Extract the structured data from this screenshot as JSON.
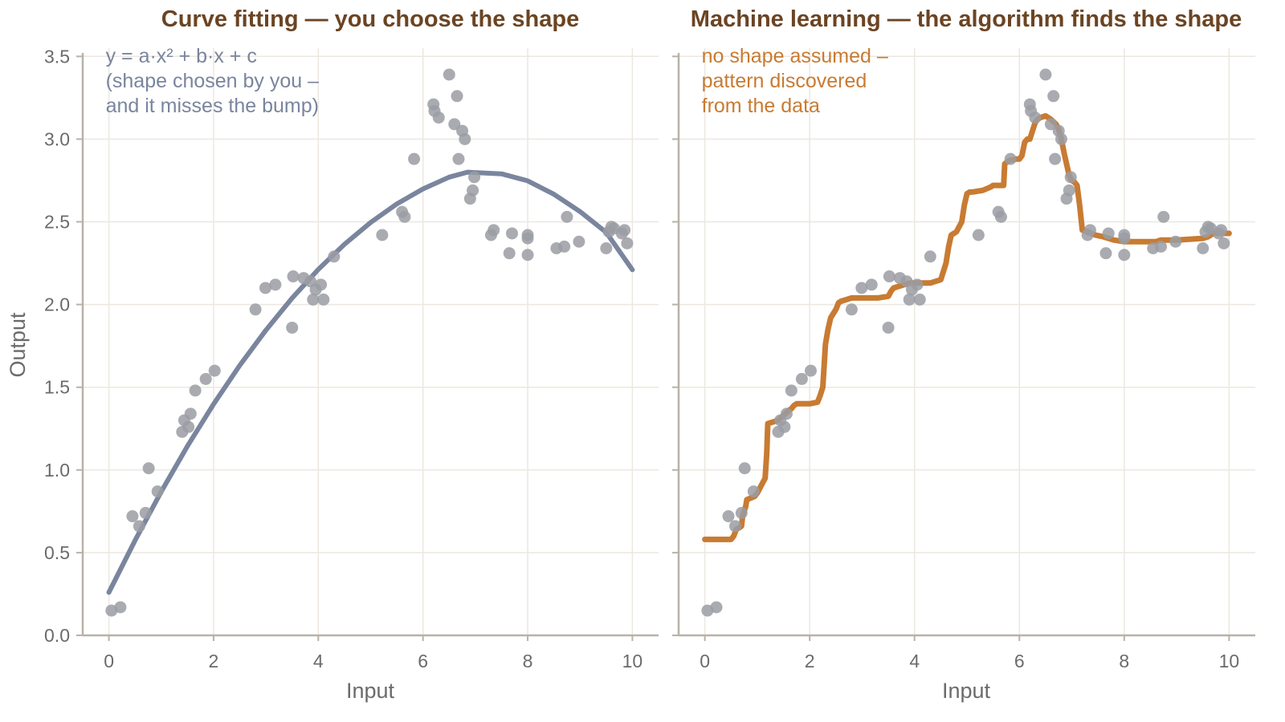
{
  "chart_data": [
    {
      "type": "scatter",
      "title": "Curve fitting — you choose the shape",
      "xlabel": "Input",
      "ylabel": "Output",
      "xlim": [
        -0.5,
        10.5
      ],
      "ylim": [
        0,
        3.55
      ],
      "xticks": [
        0,
        2,
        4,
        6,
        8,
        10
      ],
      "yticks": [
        0,
        0.5,
        1,
        1.5,
        2,
        2.5,
        3,
        3.5
      ],
      "xtick_labels": [
        "0",
        "2",
        "4",
        "6",
        "8",
        "10"
      ],
      "ytick_labels": [
        "0.0",
        "0.5",
        "1.0",
        "1.5",
        "2.0",
        "2.5",
        "3.0",
        "3.5"
      ],
      "grid": true,
      "annotation": [
        "y = a·x² + b·x + c",
        "(shape chosen by you –",
        "and it misses the bump)"
      ],
      "colors": {
        "points": "#9a9ca3",
        "fit": "#7a859e",
        "annotation": "#7a859e",
        "title": "#6b4423"
      },
      "series": [
        {
          "type": "scatter",
          "x": [
            0.05,
            0.22,
            0.45,
            0.58,
            0.7,
            0.76,
            0.93,
            1.4,
            1.44,
            1.52,
            1.56,
            1.65,
            1.85,
            2.02,
            2.8,
            2.99,
            3.18,
            3.5,
            3.52,
            3.72,
            3.85,
            3.9,
            3.95,
            4.05,
            4.1,
            4.3,
            5.22,
            5.6,
            5.65,
            5.83,
            6.2,
            6.22,
            6.3,
            6.5,
            6.6,
            6.65,
            6.68,
            6.75,
            6.8,
            6.9,
            6.95,
            6.98,
            7.3,
            7.35,
            7.65,
            7.7,
            8.0,
            8.0,
            8.0,
            8.55,
            8.7,
            8.75,
            8.98,
            9.5,
            9.55,
            9.6,
            9.65,
            9.8,
            9.85,
            9.9
          ],
          "y": [
            0.15,
            0.17,
            0.72,
            0.66,
            0.74,
            1.01,
            0.87,
            1.23,
            1.3,
            1.26,
            1.34,
            1.48,
            1.55,
            1.6,
            1.97,
            2.1,
            2.12,
            1.86,
            2.17,
            2.16,
            2.14,
            2.03,
            2.09,
            2.12,
            2.03,
            2.29,
            2.42,
            2.56,
            2.53,
            2.88,
            3.21,
            3.17,
            3.13,
            3.39,
            3.09,
            3.26,
            2.88,
            3.05,
            3.0,
            2.64,
            2.69,
            2.77,
            2.42,
            2.45,
            2.31,
            2.43,
            2.42,
            2.4,
            2.3,
            2.34,
            2.35,
            2.53,
            2.38,
            2.34,
            2.44,
            2.47,
            2.46,
            2.43,
            2.45,
            2.37
          ]
        },
        {
          "type": "line",
          "x": [
            0,
            0.5,
            1,
            1.5,
            2,
            2.5,
            3,
            3.5,
            4,
            4.5,
            5,
            5.5,
            6,
            6.5,
            6.85,
            7.5,
            8,
            8.5,
            9,
            9.5,
            10
          ],
          "y": [
            0.26,
            0.574,
            0.869,
            1.144,
            1.398,
            1.632,
            1.845,
            2.039,
            2.212,
            2.364,
            2.496,
            2.608,
            2.699,
            2.77,
            2.8,
            2.79,
            2.748,
            2.667,
            2.562,
            2.436,
            2.21
          ]
        }
      ]
    },
    {
      "type": "scatter",
      "title": "Machine learning — the algorithm finds the shape",
      "xlabel": "Input",
      "ylabel": "",
      "xlim": [
        -0.5,
        10.5
      ],
      "ylim": [
        0,
        3.55
      ],
      "xticks": [
        0,
        2,
        4,
        6,
        8,
        10
      ],
      "yticks": [
        0,
        0.5,
        1,
        1.5,
        2,
        2.5,
        3,
        3.5
      ],
      "xtick_labels": [
        "0",
        "2",
        "4",
        "6",
        "8",
        "10"
      ],
      "grid": true,
      "annotation": [
        "no shape assumed –",
        "pattern discovered",
        "from the data"
      ],
      "colors": {
        "points": "#9a9ca3",
        "fit": "#c87b32",
        "annotation": "#c87b32",
        "title": "#6b4423"
      },
      "series": [
        {
          "type": "scatter",
          "x": [
            0.05,
            0.22,
            0.45,
            0.58,
            0.7,
            0.76,
            0.93,
            1.4,
            1.44,
            1.52,
            1.56,
            1.65,
            1.85,
            2.02,
            2.8,
            2.99,
            3.18,
            3.5,
            3.52,
            3.72,
            3.85,
            3.9,
            3.95,
            4.05,
            4.1,
            4.3,
            5.22,
            5.6,
            5.65,
            5.83,
            6.2,
            6.22,
            6.3,
            6.5,
            6.6,
            6.65,
            6.68,
            6.75,
            6.8,
            6.9,
            6.95,
            6.98,
            7.3,
            7.35,
            7.65,
            7.7,
            8.0,
            8.0,
            8.0,
            8.55,
            8.7,
            8.75,
            8.98,
            9.5,
            9.55,
            9.6,
            9.65,
            9.8,
            9.85,
            9.9
          ],
          "y": [
            0.15,
            0.17,
            0.72,
            0.66,
            0.74,
            1.01,
            0.87,
            1.23,
            1.3,
            1.26,
            1.34,
            1.48,
            1.55,
            1.6,
            1.97,
            2.1,
            2.12,
            1.86,
            2.17,
            2.16,
            2.14,
            2.03,
            2.09,
            2.12,
            2.03,
            2.29,
            2.42,
            2.56,
            2.53,
            2.88,
            3.21,
            3.17,
            3.13,
            3.39,
            3.09,
            3.26,
            2.88,
            3.05,
            3.0,
            2.64,
            2.69,
            2.77,
            2.42,
            2.45,
            2.31,
            2.43,
            2.42,
            2.4,
            2.3,
            2.34,
            2.35,
            2.53,
            2.38,
            2.34,
            2.44,
            2.47,
            2.46,
            2.43,
            2.45,
            2.37
          ]
        },
        {
          "type": "line",
          "x": [
            0,
            0.5,
            0.55,
            0.6,
            0.7,
            0.72,
            0.75,
            0.78,
            0.8,
            0.95,
            1.0,
            1.1,
            1.15,
            1.18,
            1.2,
            1.4,
            1.5,
            1.6,
            1.65,
            1.7,
            1.75,
            2.0,
            2.15,
            2.2,
            2.25,
            2.3,
            2.35,
            2.4,
            2.5,
            2.55,
            2.6,
            2.7,
            2.8,
            3.0,
            3.3,
            3.5,
            3.55,
            3.6,
            3.7,
            3.8,
            3.9,
            4.0,
            4.3,
            4.5,
            4.6,
            4.65,
            4.7,
            4.8,
            4.9,
            4.95,
            5.0,
            5.05,
            5.1,
            5.3,
            5.45,
            5.5,
            5.6,
            5.7,
            5.72,
            5.8,
            5.95,
            6.0,
            6.05,
            6.1,
            6.15,
            6.2,
            6.3,
            6.35,
            6.4,
            6.5,
            6.6,
            6.7,
            6.75,
            6.8,
            6.85,
            6.9,
            6.95,
            7.0,
            7.05,
            7.1,
            7.15,
            7.2,
            7.3,
            7.45,
            7.6,
            7.8,
            8.0,
            8.3,
            8.5,
            8.6,
            8.7,
            8.8,
            9.0,
            9.5,
            9.6,
            9.7,
            9.8,
            10.0
          ],
          "y": [
            0.58,
            0.58,
            0.6,
            0.64,
            0.66,
            0.72,
            0.75,
            0.78,
            0.82,
            0.84,
            0.86,
            0.92,
            0.95,
            1.1,
            1.28,
            1.3,
            1.33,
            1.36,
            1.37,
            1.39,
            1.4,
            1.4,
            1.41,
            1.45,
            1.5,
            1.76,
            1.85,
            1.92,
            1.97,
            2.01,
            2.02,
            2.03,
            2.04,
            2.04,
            2.04,
            2.05,
            2.08,
            2.1,
            2.11,
            2.12,
            2.13,
            2.13,
            2.13,
            2.15,
            2.25,
            2.35,
            2.42,
            2.44,
            2.5,
            2.6,
            2.67,
            2.68,
            2.68,
            2.69,
            2.71,
            2.72,
            2.72,
            2.72,
            2.85,
            2.87,
            2.88,
            2.88,
            2.9,
            2.98,
            3.0,
            3.0,
            3.1,
            3.12,
            3.13,
            3.14,
            3.12,
            3.09,
            3.06,
            3.0,
            2.92,
            2.85,
            2.78,
            2.75,
            2.74,
            2.72,
            2.6,
            2.45,
            2.44,
            2.42,
            2.41,
            2.39,
            2.38,
            2.38,
            2.38,
            2.38,
            2.39,
            2.39,
            2.39,
            2.4,
            2.41,
            2.43,
            2.43,
            2.43
          ]
        }
      ]
    }
  ]
}
